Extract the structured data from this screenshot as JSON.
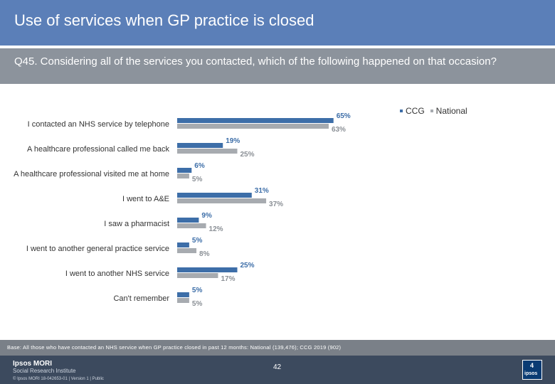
{
  "header": {
    "title": "Use of services when GP practice is closed",
    "question": "Q45. Considering all of the services you contacted, which of the following happened on that occasion?"
  },
  "colors": {
    "title_bg": "#5b7fb8",
    "question_bg": "#8c939c",
    "ccg": "#3d6ea8",
    "national": "#a7abb0",
    "ccg_label": "#3d6ea8",
    "national_label": "#8a8f95"
  },
  "chart_data": {
    "type": "bar",
    "orientation": "horizontal",
    "categories": [
      "I contacted an NHS service by telephone",
      "A healthcare professional called me back",
      "A healthcare professional visited me at home",
      "I went to A&E",
      "I saw a pharmacist",
      "I went to another general practice service",
      "I  went to another NHS service",
      "Can't remember"
    ],
    "series": [
      {
        "name": "CCG",
        "values": [
          65,
          19,
          6,
          31,
          9,
          5,
          25,
          5
        ],
        "labels": [
          "65%",
          "19%",
          "6%",
          "31%",
          "9%",
          "5%",
          "25%",
          "5%"
        ]
      },
      {
        "name": "National",
        "values": [
          63,
          25,
          5,
          37,
          12,
          8,
          17,
          5
        ],
        "labels": [
          "63%",
          "25%",
          "5%",
          "37%",
          "12%",
          "8%",
          "17%",
          "5%"
        ]
      }
    ],
    "xlim": [
      0,
      100
    ],
    "legend": "top-right",
    "grid": false
  },
  "legend": {
    "ccg": "CCG",
    "national": "National"
  },
  "footer": {
    "base": "Base: All those who have contacted an NHS service when GP practice closed in past 12 months: National (139,476); CCG 2019 (902)",
    "brand_line1": "Ipsos MORI",
    "brand_line2": "Social Research Institute",
    "meta": "© Ipsos MORI    18-042653-01 | Version 1 | Public",
    "page": "42",
    "logo_mark": "4",
    "logo_word": "ipsos"
  }
}
